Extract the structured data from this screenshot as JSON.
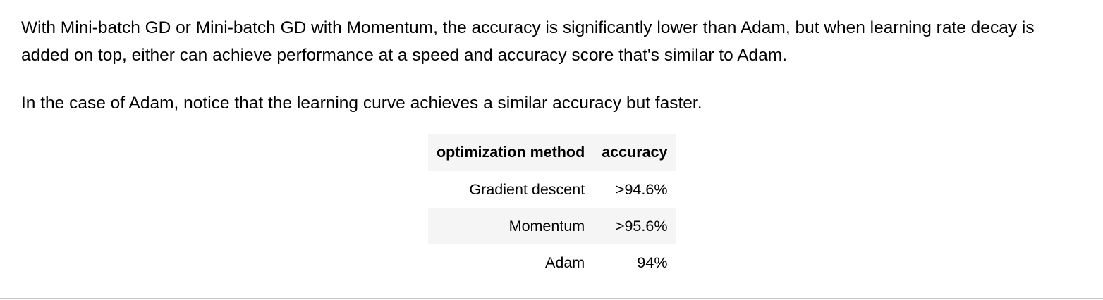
{
  "paragraphs": [
    "With Mini-batch GD or Mini-batch GD with Momentum, the accuracy is significantly lower than Adam, but when learning rate decay is added on top, either can achieve performance at a speed and accuracy score that's similar to Adam.",
    "In the case of Adam, notice that the learning curve achieves a similar accuracy but faster."
  ],
  "table": {
    "headers": [
      "optimization method",
      "accuracy"
    ],
    "rows": [
      [
        "Gradient descent",
        ">94.6%"
      ],
      [
        "Momentum",
        ">95.6%"
      ],
      [
        "Adam",
        "94%"
      ]
    ]
  }
}
